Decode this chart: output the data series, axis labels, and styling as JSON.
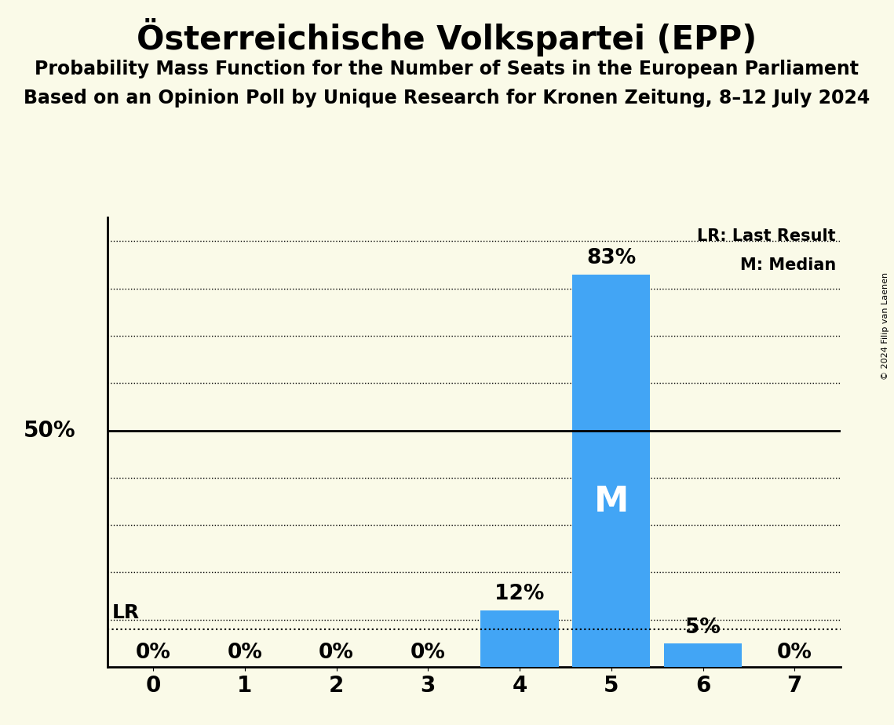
{
  "title": "Österreichische Volkspartei (EPP)",
  "subtitle1": "Probability Mass Function for the Number of Seats in the European Parliament",
  "subtitle2": "Based on an Opinion Poll by Unique Research for Kronen Zeitung, 8–12 July 2024",
  "copyright": "© 2024 Filip van Laenen",
  "categories": [
    0,
    1,
    2,
    3,
    4,
    5,
    6,
    7
  ],
  "values": [
    0,
    0,
    0,
    0,
    12,
    83,
    5,
    0
  ],
  "bar_color": "#42a5f5",
  "median_bar": 5,
  "lr_y": 8,
  "fifty_pct_y": 50,
  "background_color": "#fafae8",
  "title_fontsize": 30,
  "subtitle_fontsize": 17,
  "tick_fontsize": 20,
  "pct_label_fontsize": 19,
  "fifty_label_fontsize": 20,
  "lr_label_fontsize": 18,
  "legend_fontsize": 15,
  "median_fontsize": 32,
  "legend_lr": "LR: Last Result",
  "legend_m": "M: Median",
  "xlim": [
    -0.5,
    7.5
  ],
  "ylim": [
    0,
    95
  ],
  "bar_width": 0.85
}
